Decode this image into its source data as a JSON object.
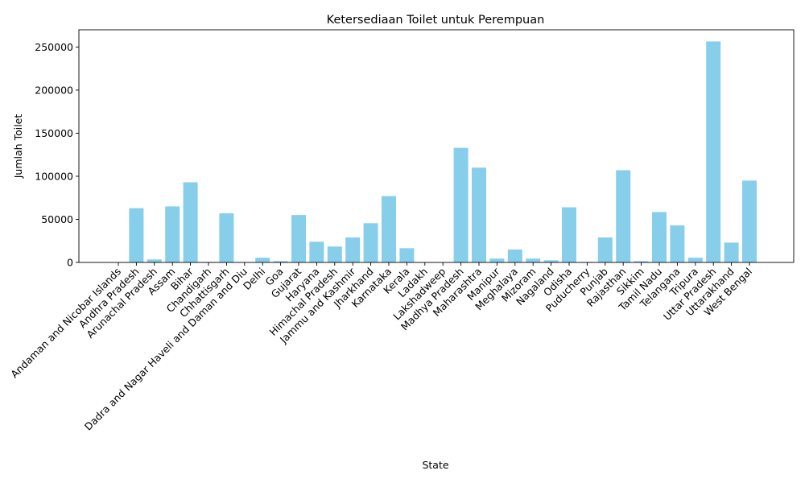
{
  "chart_data": {
    "type": "bar",
    "title": "Ketersediaan Toilet untuk Perempuan",
    "xlabel": "State",
    "ylabel": "Jumlah Toilet",
    "ylim": [
      0,
      270000
    ],
    "yticks": [
      "0",
      "50000",
      "100000",
      "150000",
      "200000",
      "250000"
    ],
    "bar_color": "#87ceeb",
    "grid": false,
    "legend": "none",
    "categories": [
      "Andaman and Nicobar Islands",
      "Andhra Pradesh",
      "Arunachal Pradesh",
      "Assam",
      "Bihar",
      "Chandigarh",
      "Chhattisgarh",
      "Dadra and Nagar Haveli and Daman and Diu",
      "Delhi",
      "Goa",
      "Gujarat",
      "Haryana",
      "Himachal Pradesh",
      "Jammu and Kashmir",
      "Jharkhand",
      "Karnataka",
      "Kerala",
      "Ladakh",
      "Lakshadweep",
      "Madhya Pradesh",
      "Maharashtra",
      "Manipur",
      "Meghalaya",
      "Mizoram",
      "Nagaland",
      "Odisha",
      "Puducherry",
      "Punjab",
      "Rajasthan",
      "Sikkim",
      "Tamil Nadu",
      "Telangana",
      "Tripura",
      "Uttar Pradesh",
      "Uttarakhand",
      "West Bengal"
    ],
    "values": [
      300,
      63000,
      3500,
      65000,
      93000,
      600,
      57000,
      500,
      5500,
      1500,
      55000,
      24000,
      18500,
      29000,
      45500,
      77000,
      16500,
      400,
      100,
      133000,
      110000,
      4500,
      15000,
      4500,
      2500,
      64000,
      600,
      29000,
      107000,
      1500,
      58500,
      43000,
      5500,
      256500,
      23000,
      95000
    ]
  }
}
